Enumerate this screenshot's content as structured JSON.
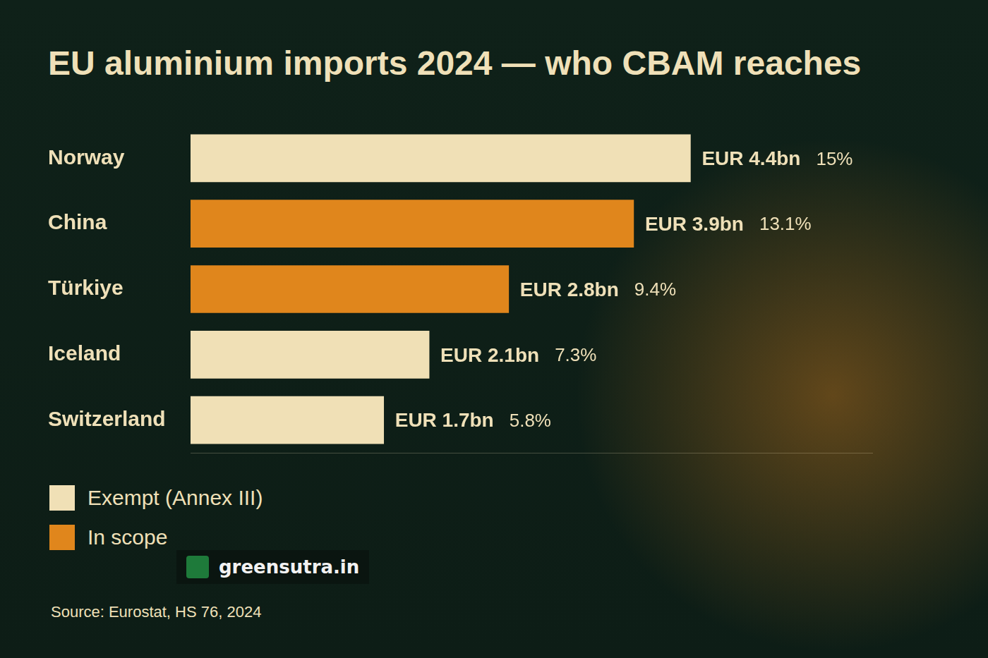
{
  "chart_data": {
    "type": "bar",
    "title": "EU aluminium imports 2024 — who CBAM reaches",
    "orientation": "horizontal",
    "categories": [
      "Norway",
      "China",
      "Türkiye",
      "Iceland",
      "Switzerland"
    ],
    "values": [
      4.4,
      3.9,
      2.8,
      2.1,
      1.7
    ],
    "value_labels": [
      "EUR 4.4bn",
      "EUR 3.9bn",
      "EUR 2.8bn",
      "EUR 2.1bn",
      "EUR 1.7bn"
    ],
    "shares": [
      15,
      13.1,
      9.4,
      7.3,
      5.8
    ],
    "share_labels": [
      "15%",
      "13.1%",
      "9.4%",
      "7.3%",
      "5.8%"
    ],
    "colors": [
      "#f0e0b6",
      "#e0861c",
      "#e0861c",
      "#f0e0b6",
      "#f0e0b6"
    ],
    "xlim": [
      0,
      6
    ],
    "grid": false,
    "tick_labels": "y",
    "data_labels": true,
    "legend": "lower left",
    "legend_entries": [
      {
        "name": "Exempt (Annex III)",
        "color": "#f0e0b6"
      },
      {
        "name": "In scope",
        "color": "#e0861c"
      }
    ],
    "watermark": "greensutra.in",
    "source": "Source: Eurostat, HS 76, 2024"
  }
}
